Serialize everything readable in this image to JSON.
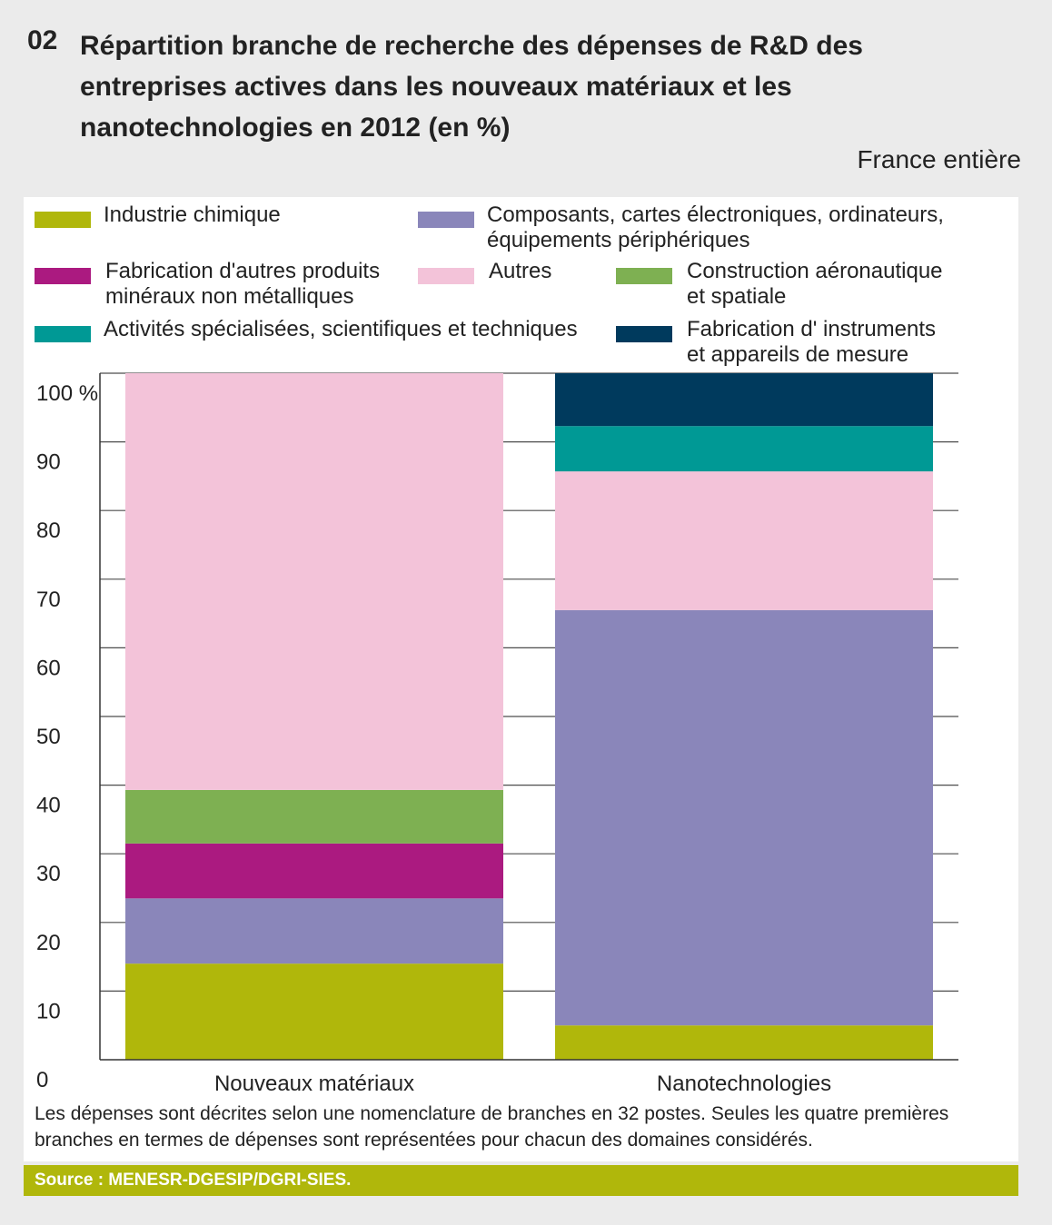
{
  "figure_number": "02",
  "title": "Répartition branche de recherche des dépenses de R&D des entreprises actives dans les nouveaux matériaux et les nanotechnologies en 2012 (en %)",
  "subtitle": "France entière",
  "legend": [
    {
      "label": "Industrie chimique",
      "color": "#b0b70b"
    },
    {
      "label": "Composants, cartes électroniques, ordinateurs, équipements périphériques",
      "color": "#8a86ba"
    },
    {
      "label": "Fabrication d'autres produits minéraux non métalliques",
      "color": "#ab1a80"
    },
    {
      "label": "Autres",
      "color": "#f3c3d9"
    },
    {
      "label": "Construction aéronautique et spatiale",
      "color": "#7eb052"
    },
    {
      "label": "Activités spécialisées, scientifiques et techniques",
      "color": "#009995"
    },
    {
      "label": "Fabrication d' instruments et appareils de mesure",
      "color": "#003a5d"
    }
  ],
  "chart_data": {
    "type": "bar",
    "stacked": true,
    "categories": [
      "Nouveaux matériaux",
      "Nanotechnologies"
    ],
    "series": [
      {
        "name": "Industrie chimique",
        "color": "#b0b70b",
        "values": [
          14,
          5
        ]
      },
      {
        "name": "Composants, cartes électroniques, ordinateurs, équipements périphériques",
        "color": "#8a86ba",
        "values": [
          9.5,
          60.5
        ]
      },
      {
        "name": "Fabrication d'autres produits minéraux non métalliques",
        "color": "#ab1a80",
        "values": [
          8,
          0
        ]
      },
      {
        "name": "Construction aéronautique et spatiale",
        "color": "#7eb052",
        "values": [
          7.8,
          0
        ]
      },
      {
        "name": "Autres",
        "color": "#f3c3d9",
        "values": [
          60.7,
          20.2
        ]
      },
      {
        "name": "Activités spécialisées, scientifiques et techniques",
        "color": "#009995",
        "values": [
          0,
          6.6
        ]
      },
      {
        "name": "Fabrication d' instruments et appareils de mesure",
        "color": "#003a5d",
        "values": [
          0,
          7.7
        ]
      }
    ],
    "ylim": [
      0,
      100
    ],
    "yticks": [
      0,
      10,
      20,
      30,
      40,
      50,
      60,
      70,
      80,
      90,
      100
    ],
    "ytick_labels": [
      "0",
      "10",
      "20",
      "30",
      "40",
      "50",
      "60",
      "70",
      "80",
      "90",
      "100 %"
    ],
    "grid": true,
    "legend_position": "top"
  },
  "note": "Les dépenses sont décrites selon une nomenclature de branches en 32 postes. Seules les quatre premières branches en termes de dépenses sont représentées pour chacun des domaines considérés.",
  "source": "Source : MENESR-DGESIP/DGRI-SIES."
}
